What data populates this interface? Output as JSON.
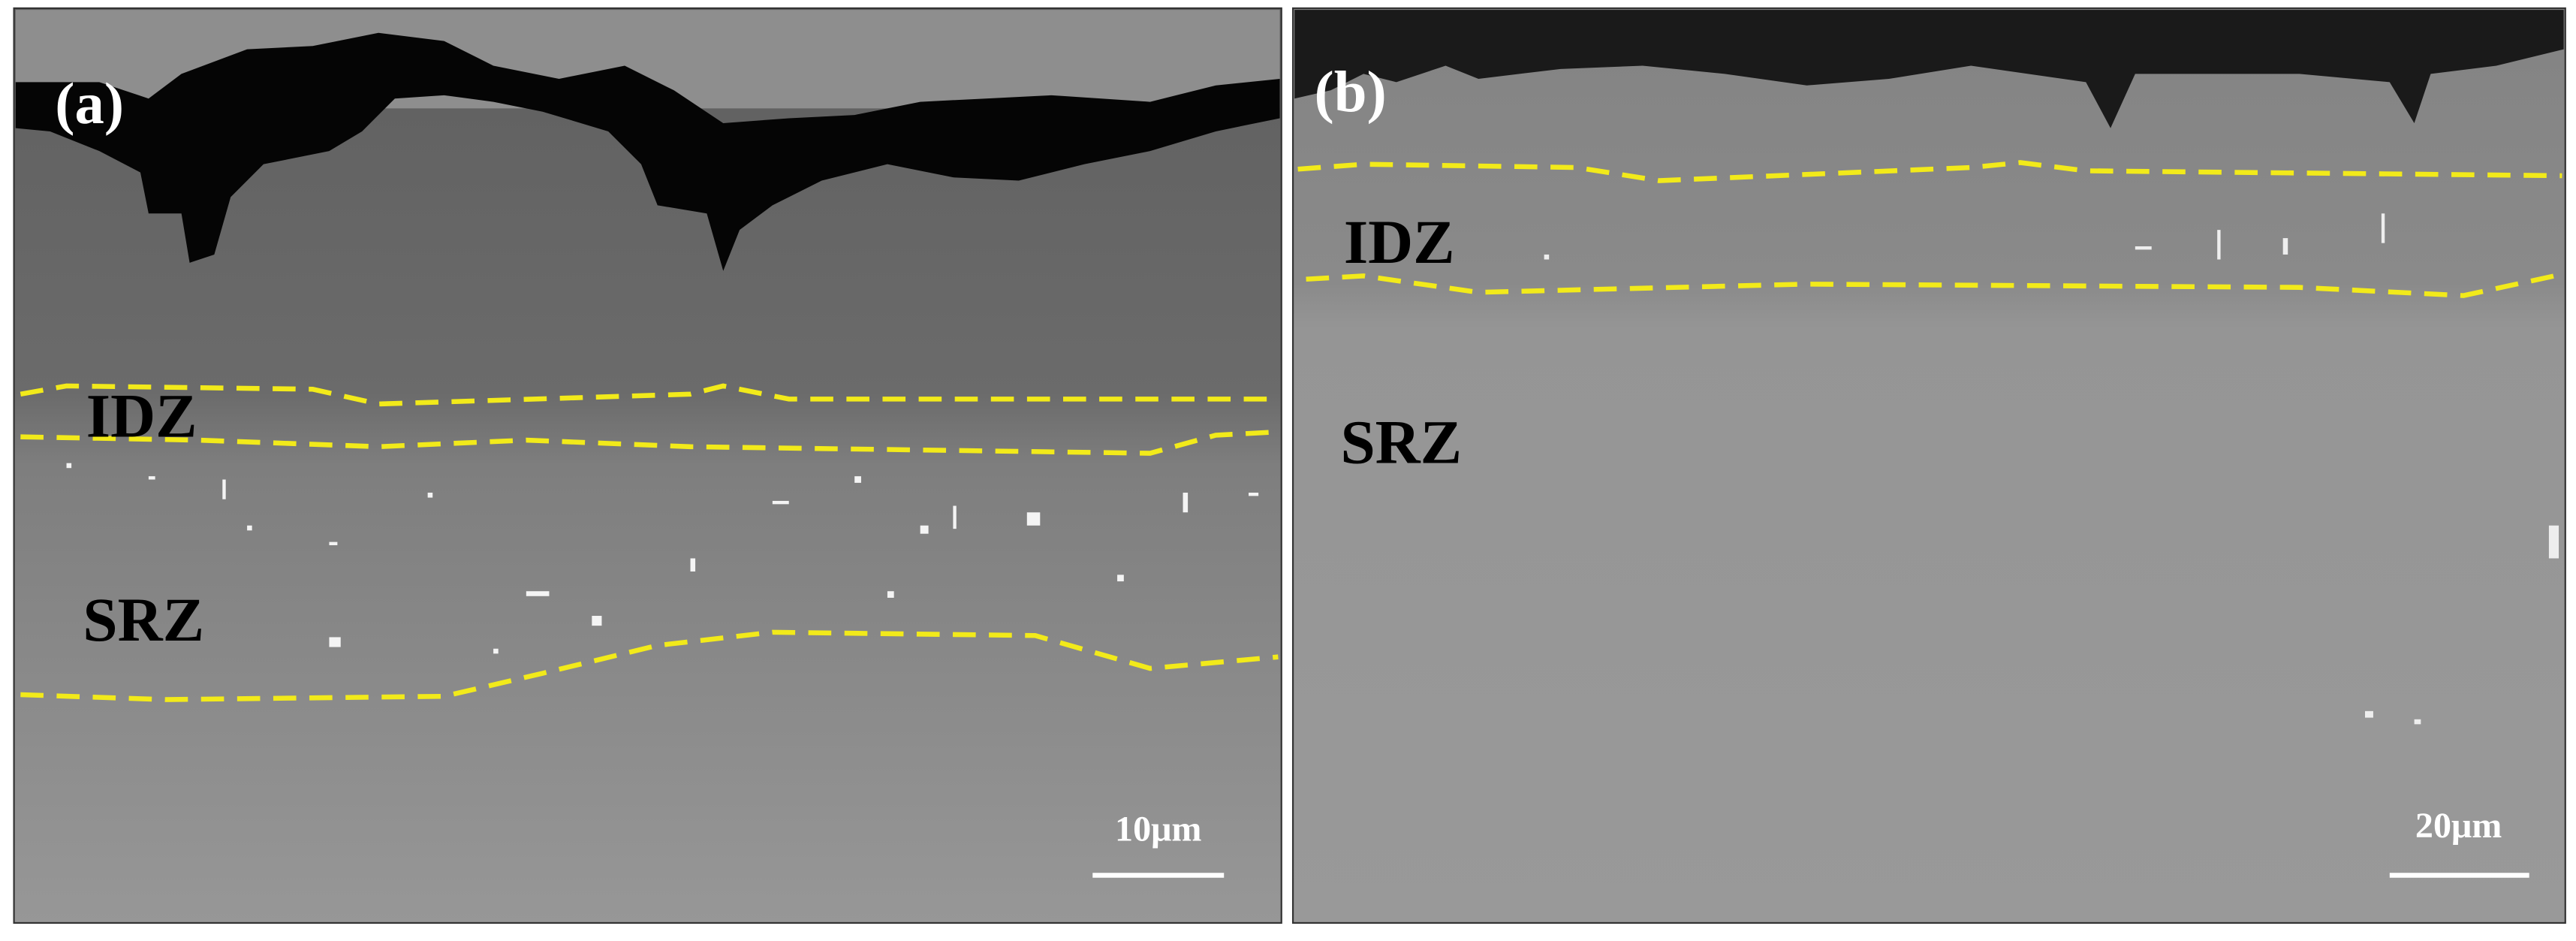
{
  "panels": [
    {
      "label": "(a)",
      "regions": [
        "IDZ",
        "SRZ"
      ],
      "scale_bar": "10μm"
    },
    {
      "label": "(b)",
      "regions": [
        "IDZ",
        "SRZ"
      ],
      "scale_bar": "20μm"
    }
  ]
}
